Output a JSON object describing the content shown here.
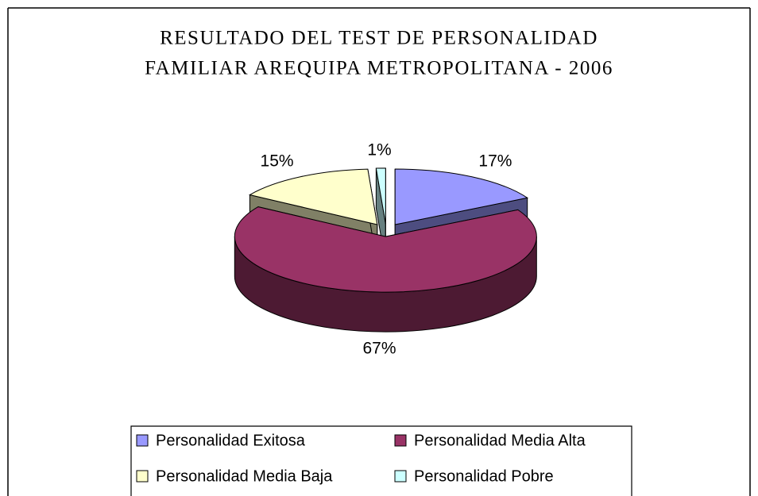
{
  "chart_data": {
    "type": "pie3d",
    "title": [
      "RESULTADO DEL TEST DE PERSONALIDAD",
      "FAMILIAR AREQUIPA METROPOLITANA  - 2006"
    ],
    "categories": [
      "Personalidad Exitosa",
      "Personalidad Media Alta",
      "Personalidad Media Baja",
      "Personalidad Pobre"
    ],
    "values": [
      17,
      67,
      15,
      1
    ],
    "value_labels": [
      "17%",
      "67%",
      "15%",
      "1%"
    ],
    "colors": [
      "#9999ff",
      "#993366",
      "#ffffcc",
      "#ccffff"
    ],
    "legend": "bottom"
  }
}
